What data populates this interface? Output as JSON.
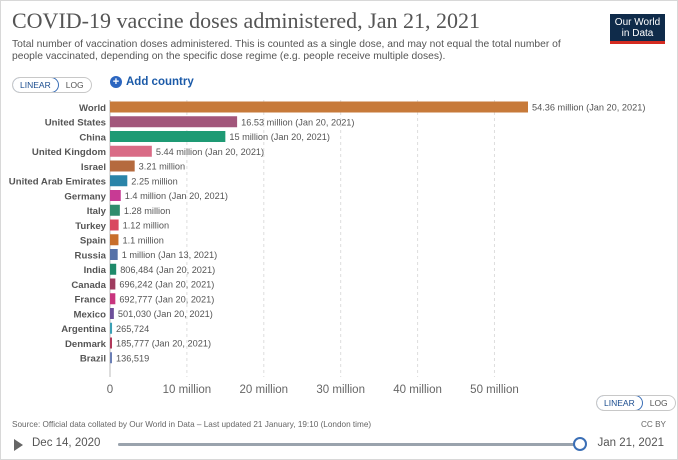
{
  "title": "COVID-19 vaccine doses administered, Jan 21, 2021",
  "subtitle": "Total number of vaccination doses administered. This is counted as a single dose, and may not equal the total number of people vaccinated, depending on the specific dose regime (e.g. people receive multiple doses).",
  "logo": {
    "line1": "Our World",
    "line2": "in Data"
  },
  "scale_toggle_top": {
    "linear": "LINEAR",
    "log": "LOG",
    "selected": "LINEAR"
  },
  "scale_toggle_bottom": {
    "linear": "LINEAR",
    "log": "LOG",
    "selected": "LINEAR"
  },
  "add_country": {
    "icon": "plus-icon",
    "label": "Add country"
  },
  "chart_data": {
    "type": "bar",
    "orientation": "horizontal",
    "title": "COVID-19 vaccine doses administered, Jan 21, 2021",
    "xlim": [
      0,
      55000000
    ],
    "x_ticks": [
      0,
      10000000,
      20000000,
      30000000,
      40000000,
      50000000
    ],
    "x_tick_labels": [
      "0",
      "10 million",
      "20 million",
      "30 million",
      "40 million",
      "50 million"
    ],
    "grid": "vertical dashed",
    "bars": [
      {
        "category": "World",
        "value": 54360000,
        "label": "54.36 million (Jan 20, 2021)",
        "color": "#c77a3a"
      },
      {
        "category": "United States",
        "value": 16530000,
        "label": "16.53 million (Jan 20, 2021)",
        "color": "#a2567b"
      },
      {
        "category": "China",
        "value": 15000000,
        "label": "15 million (Jan 20, 2021)",
        "color": "#1e9a74"
      },
      {
        "category": "United Kingdom",
        "value": 5440000,
        "label": "5.44 million (Jan 20, 2021)",
        "color": "#d96b86"
      },
      {
        "category": "Israel",
        "value": 3210000,
        "label": "3.21 million",
        "color": "#b56a3e"
      },
      {
        "category": "United Arab Emirates",
        "value": 2250000,
        "label": "2.25 million",
        "color": "#2a84a8"
      },
      {
        "category": "Germany",
        "value": 1400000,
        "label": "1.4 million (Jan 20, 2021)",
        "color": "#c83a94"
      },
      {
        "category": "Italy",
        "value": 1280000,
        "label": "1.28 million",
        "color": "#2f8c6d"
      },
      {
        "category": "Turkey",
        "value": 1120000,
        "label": "1.12 million",
        "color": "#d9485f"
      },
      {
        "category": "Spain",
        "value": 1100000,
        "label": "1.1 million",
        "color": "#c86e2b"
      },
      {
        "category": "Russia",
        "value": 1000000,
        "label": "1 million (Jan 13, 2021)",
        "color": "#5672a8"
      },
      {
        "category": "India",
        "value": 806484,
        "label": "806,484 (Jan 20, 2021)",
        "color": "#1f8a6a"
      },
      {
        "category": "Canada",
        "value": 696242,
        "label": "696,242 (Jan 20, 2021)",
        "color": "#9e3b5e"
      },
      {
        "category": "France",
        "value": 692777,
        "label": "692,777 (Jan 20, 2021)",
        "color": "#c8357e"
      },
      {
        "category": "Mexico",
        "value": 501030,
        "label": "501,030 (Jan 20, 2021)",
        "color": "#6d4f9a"
      },
      {
        "category": "Argentina",
        "value": 265724,
        "label": "265,724",
        "color": "#3aa0b5"
      },
      {
        "category": "Denmark",
        "value": 185777,
        "label": "185,777 (Jan 20, 2021)",
        "color": "#b0385a"
      },
      {
        "category": "Brazil",
        "value": 136519,
        "label": "136,519",
        "color": "#6b7fb5"
      }
    ]
  },
  "source": "Source: Official data collated by Our World in Data – Last updated 21 January, 19:10 (London time)",
  "license": "CC BY",
  "timeline": {
    "start": "Dec 14, 2020",
    "end": "Jan 21, 2021",
    "position": 1.0
  }
}
